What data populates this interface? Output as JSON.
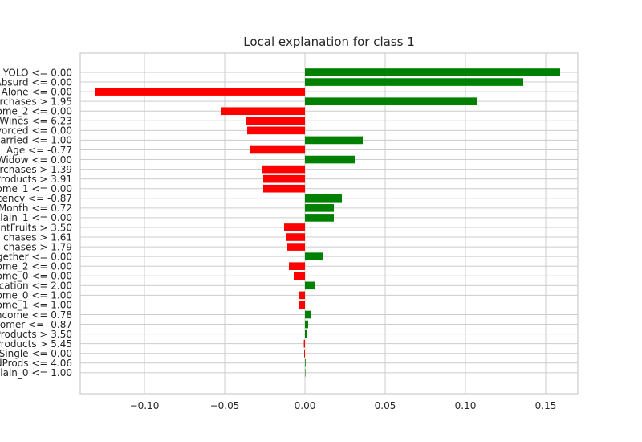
{
  "chart_data": {
    "type": "bar",
    "orientation": "horizontal",
    "title": "Local explanation for class 1",
    "xlabel": "",
    "ylabel": "",
    "xlim": [
      -0.14,
      0.17
    ],
    "xticks": [
      -0.1,
      -0.05,
      0.0,
      0.05,
      0.1,
      0.15
    ],
    "xtick_labels": [
      "−0.10",
      "−0.05",
      "0.00",
      "0.05",
      "0.10",
      "0.15"
    ],
    "grid": true,
    "positive_color": "#008000",
    "negative_color": "#ff0000",
    "categories": [
      "YOLO <= 0.00",
      "Absurd <= 0.00",
      "Alone <= 0.00",
      "rchases > 1.95",
      "ome_2 <= 0.00",
      "Wines <= 6.23",
      "vorced <= 0.00",
      "Married <= 1.00",
      "Age <= -0.77",
      "Widow <= 0.00",
      "rchases > 1.39",
      "Products > 3.91",
      "ome_1 <= 0.00",
      "cency <= -0.87",
      "Month <= 0.72",
      "plain_1 <= 0.00",
      "ntFruits > 3.50",
      "chases > 1.61",
      "chases > 1.79",
      "gether <= 0.00",
      "ome_2 <= 0.00",
      "ome_0 <= 0.00",
      "ucation <= 2.00",
      "ome_0 <= 1.00",
      "ome_1 <= 1.00",
      "ncome <= 0.78",
      "tomer <= -0.87",
      "Products > 3.50",
      "Products > 5.45",
      "Single <= 0.00",
      "dProds <= 4.06",
      "plain_0 <= 1.00"
    ],
    "values": [
      0.159,
      0.136,
      -0.131,
      0.107,
      -0.052,
      -0.037,
      -0.036,
      0.036,
      -0.034,
      0.031,
      -0.027,
      -0.026,
      -0.026,
      0.023,
      0.018,
      0.018,
      -0.013,
      -0.012,
      -0.011,
      0.011,
      -0.01,
      -0.007,
      0.006,
      -0.004,
      -0.004,
      0.004,
      0.002,
      0.001,
      -0.0007,
      -0.0005,
      0.0004,
      0.0
    ]
  }
}
